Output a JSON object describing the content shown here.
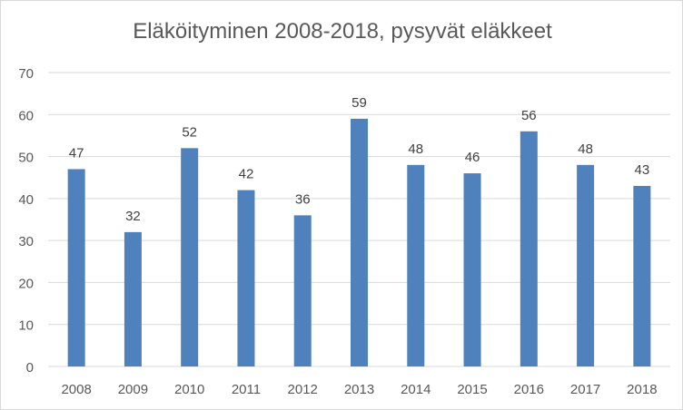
{
  "chart_data": {
    "type": "bar",
    "title": "Eläköityminen 2008-2018, pysyvät eläkkeet",
    "categories": [
      "2008",
      "2009",
      "2010",
      "2011",
      "2012",
      "2013",
      "2014",
      "2015",
      "2016",
      "2017",
      "2018"
    ],
    "values": [
      47,
      32,
      52,
      42,
      36,
      59,
      48,
      46,
      56,
      48,
      43
    ],
    "yticks": [
      "0",
      "10",
      "20",
      "30",
      "40",
      "50",
      "60",
      "70"
    ],
    "ylim": [
      0,
      70
    ],
    "xlabel": "",
    "ylabel": "",
    "grid": true,
    "legend": "none",
    "data_labels": true,
    "bar_color": "#4f81bd",
    "grid_color": "#d9d9d9",
    "text_color": "#595959",
    "label_color": "#404040"
  }
}
